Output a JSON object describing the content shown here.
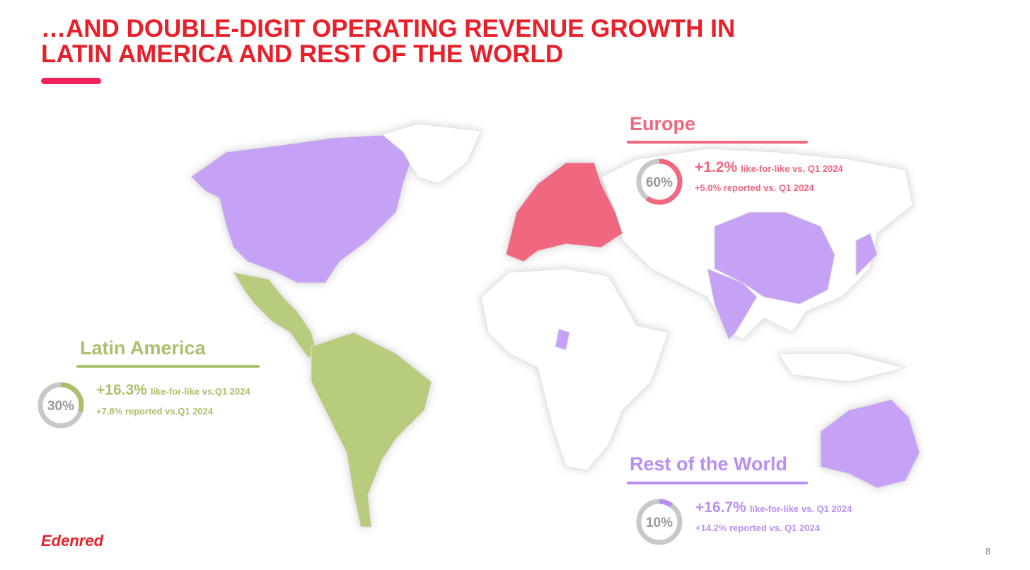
{
  "header": {
    "title_lines": [
      "…AND DOUBLE-DIGIT OPERATING REVENUE GROWTH IN",
      "LATIN AMERICA AND REST OF THE WORLD"
    ]
  },
  "regions": [
    {
      "name": "Europe",
      "share": 60,
      "share_label": "60%",
      "lfl_value": "+1.2%",
      "lfl_text": "like-for-like vs. Q1 2024",
      "reported_text": "+5.0% reported vs. Q1 2024",
      "color": "#f0677f"
    },
    {
      "name": "Latin America",
      "share": 30,
      "share_label": "30%",
      "lfl_value": "+16.3%",
      "lfl_text": "like-for-like vs.Q1 2024",
      "reported_text": "+7.8% reported vs.Q1 2024",
      "color": "#a9c06c"
    },
    {
      "name": "Rest of the World",
      "share": 10,
      "share_label": "10%",
      "lfl_value": "+16.7%",
      "lfl_text": "like-for-like vs. Q1 2024",
      "reported_text": "+14.2% reported vs. Q1 2024",
      "color": "#b98ff0"
    }
  ],
  "footer": {
    "logo": "Edenred",
    "page_number": "8"
  }
}
